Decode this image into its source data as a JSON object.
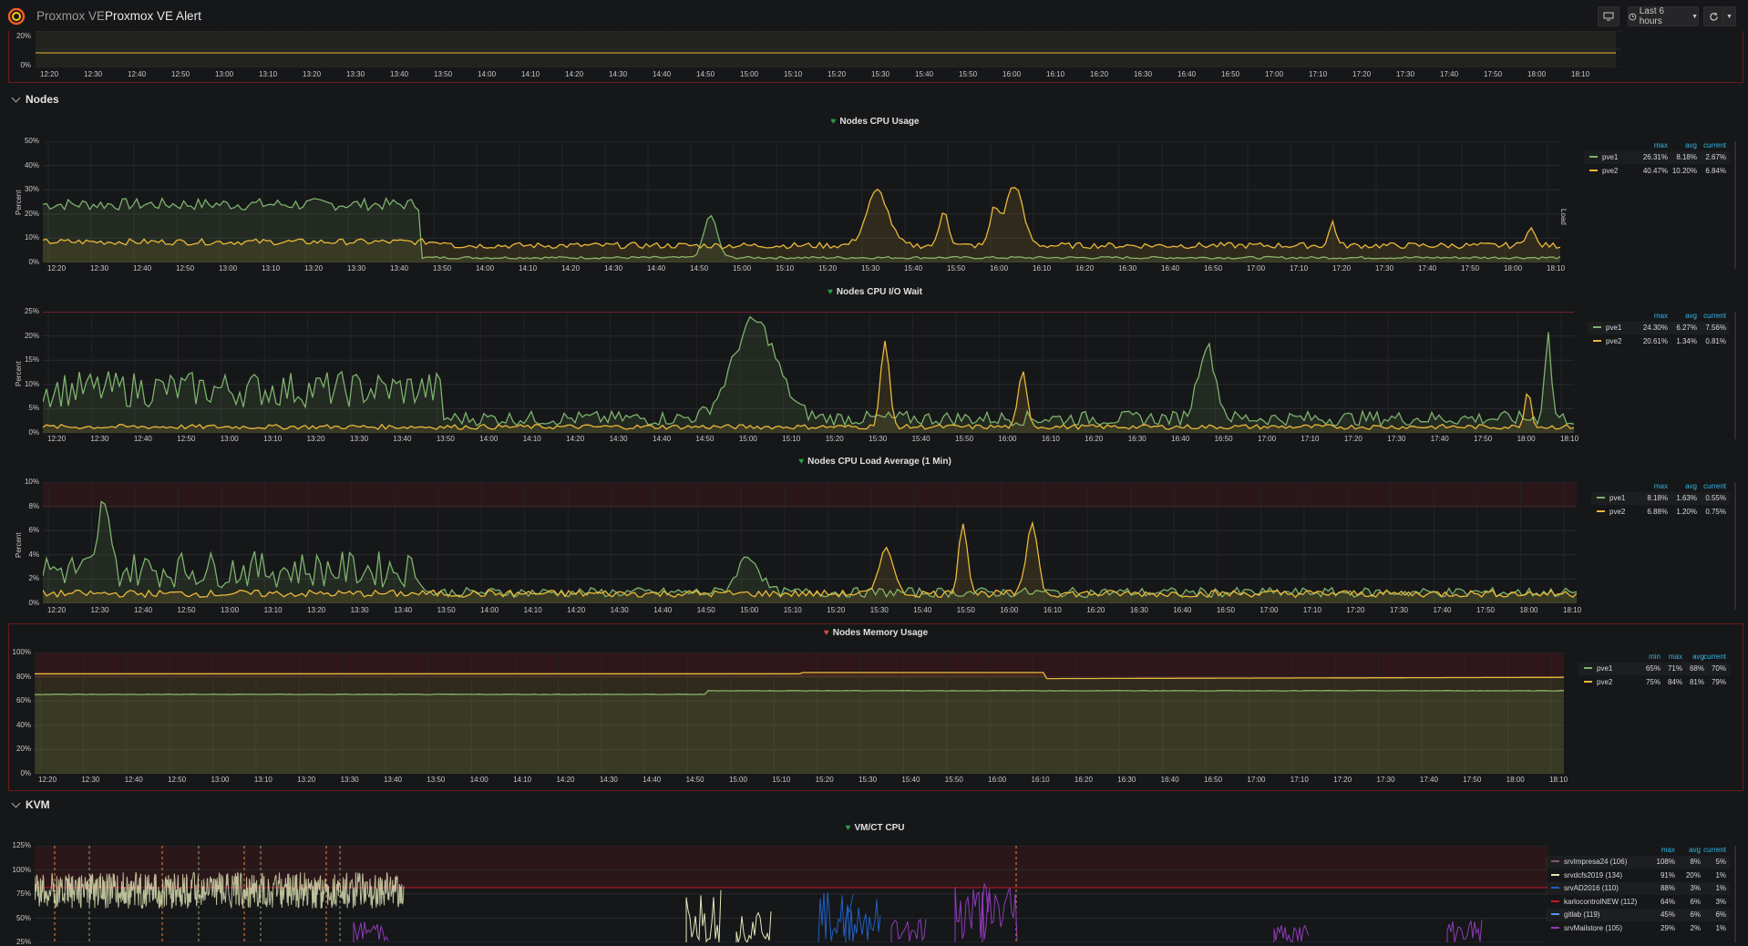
{
  "header": {
    "title_prefix": "Proxmox VE",
    "title_main": "Proxmox VE Alert",
    "time_range": "Last 6 hours",
    "icons": {
      "logo": "grafana-logo-icon",
      "display": "monitor-icon",
      "clock": "clock-icon",
      "refresh": "refresh-icon",
      "caret": "caret-down-icon"
    }
  },
  "colors": {
    "green": "#7eb26d",
    "yellow": "#eab839",
    "threshold": "#c4162a",
    "tick_blue": "#33b5e5"
  },
  "time_ticks": [
    "12:20",
    "12:30",
    "12:40",
    "12:50",
    "13:00",
    "13:10",
    "13:20",
    "13:30",
    "13:40",
    "13:50",
    "14:00",
    "14:10",
    "14:20",
    "14:30",
    "14:40",
    "14:50",
    "15:00",
    "15:10",
    "15:20",
    "15:30",
    "15:40",
    "15:50",
    "16:00",
    "16:10",
    "16:20",
    "16:30",
    "16:40",
    "16:50",
    "17:00",
    "17:10",
    "17:20",
    "17:30",
    "17:40",
    "17:50",
    "18:00",
    "18:10"
  ],
  "top_panel": {
    "y_ticks": [
      "20%",
      "0%"
    ]
  },
  "rows": {
    "nodes": "Nodes",
    "kvm": "KVM"
  },
  "panels": {
    "cpu": {
      "title": "Nodes CPU Usage",
      "status": "ok",
      "ylabel": "Percent",
      "right_label": "Load",
      "y_ticks": [
        "50%",
        "40%",
        "30%",
        "20%",
        "10%",
        "0%"
      ],
      "legend_headers": [
        "max",
        "avg",
        "current"
      ],
      "legend": [
        {
          "name": "pve1",
          "color": "#7eb26d",
          "values": [
            "26.31%",
            "8.18%",
            "2.67%"
          ]
        },
        {
          "name": "pve2",
          "color": "#eab839",
          "values": [
            "40.47%",
            "10.20%",
            "6.84%"
          ]
        }
      ]
    },
    "iowait": {
      "title": "Nodes CPU I/O Wait",
      "status": "ok",
      "ylabel": "Percent",
      "y_ticks": [
        "25%",
        "20%",
        "15%",
        "10%",
        "5%",
        "0%"
      ],
      "legend_headers": [
        "max",
        "avg",
        "current"
      ],
      "legend": [
        {
          "name": "pve1",
          "color": "#7eb26d",
          "values": [
            "24.30%",
            "6.27%",
            "7.56%"
          ]
        },
        {
          "name": "pve2",
          "color": "#eab839",
          "values": [
            "20.61%",
            "1.34%",
            "0.81%"
          ]
        }
      ]
    },
    "load": {
      "title": "Nodes CPU Load Average (1 Min)",
      "status": "ok",
      "ylabel": "Percent",
      "y_ticks": [
        "10%",
        "8%",
        "6%",
        "4%",
        "2%",
        "0%"
      ],
      "legend_headers": [
        "max",
        "avg",
        "current"
      ],
      "legend": [
        {
          "name": "pve1",
          "color": "#7eb26d",
          "values": [
            "8.18%",
            "1.63%",
            "0.55%"
          ]
        },
        {
          "name": "pve2",
          "color": "#eab839",
          "values": [
            "6.88%",
            "1.20%",
            "0.75%"
          ]
        }
      ]
    },
    "memory": {
      "title": "Nodes Memory Usage",
      "status": "alerting",
      "y_ticks": [
        "100%",
        "80%",
        "60%",
        "40%",
        "20%",
        "0%"
      ],
      "legend_headers": [
        "min",
        "max",
        "avg",
        "current"
      ],
      "legend": [
        {
          "name": "pve1",
          "color": "#7eb26d",
          "values": [
            "65%",
            "71%",
            "68%",
            "70%"
          ]
        },
        {
          "name": "pve2",
          "color": "#eab839",
          "values": [
            "75%",
            "84%",
            "81%",
            "79%"
          ]
        }
      ]
    },
    "vmcpu": {
      "title": "VM/CT CPU",
      "status": "ok",
      "y_ticks": [
        "125%",
        "100%",
        "75%",
        "50%",
        "25%"
      ],
      "legend_headers": [
        "max",
        "avg",
        "current"
      ],
      "legend": [
        {
          "name": "srvImpresa24 (106)",
          "color": "#7e5b6e",
          "values": [
            "108%",
            "8%",
            "5%"
          ]
        },
        {
          "name": "srvdcfs2019 (134)",
          "color": "#e5e8b8",
          "values": [
            "91%",
            "20%",
            "1%"
          ]
        },
        {
          "name": "srvAD2016 (110)",
          "color": "#1f60c4",
          "values": [
            "88%",
            "3%",
            "1%"
          ]
        },
        {
          "name": "karlocontrolNEW (112)",
          "color": "#c4162a",
          "values": [
            "64%",
            "6%",
            "3%"
          ]
        },
        {
          "name": "gitlab (119)",
          "color": "#5794f2",
          "values": [
            "45%",
            "6%",
            "6%"
          ]
        },
        {
          "name": "srvMailstore (105)",
          "color": "#8f3bb8",
          "values": [
            "29%",
            "2%",
            "1%"
          ]
        }
      ]
    }
  }
}
